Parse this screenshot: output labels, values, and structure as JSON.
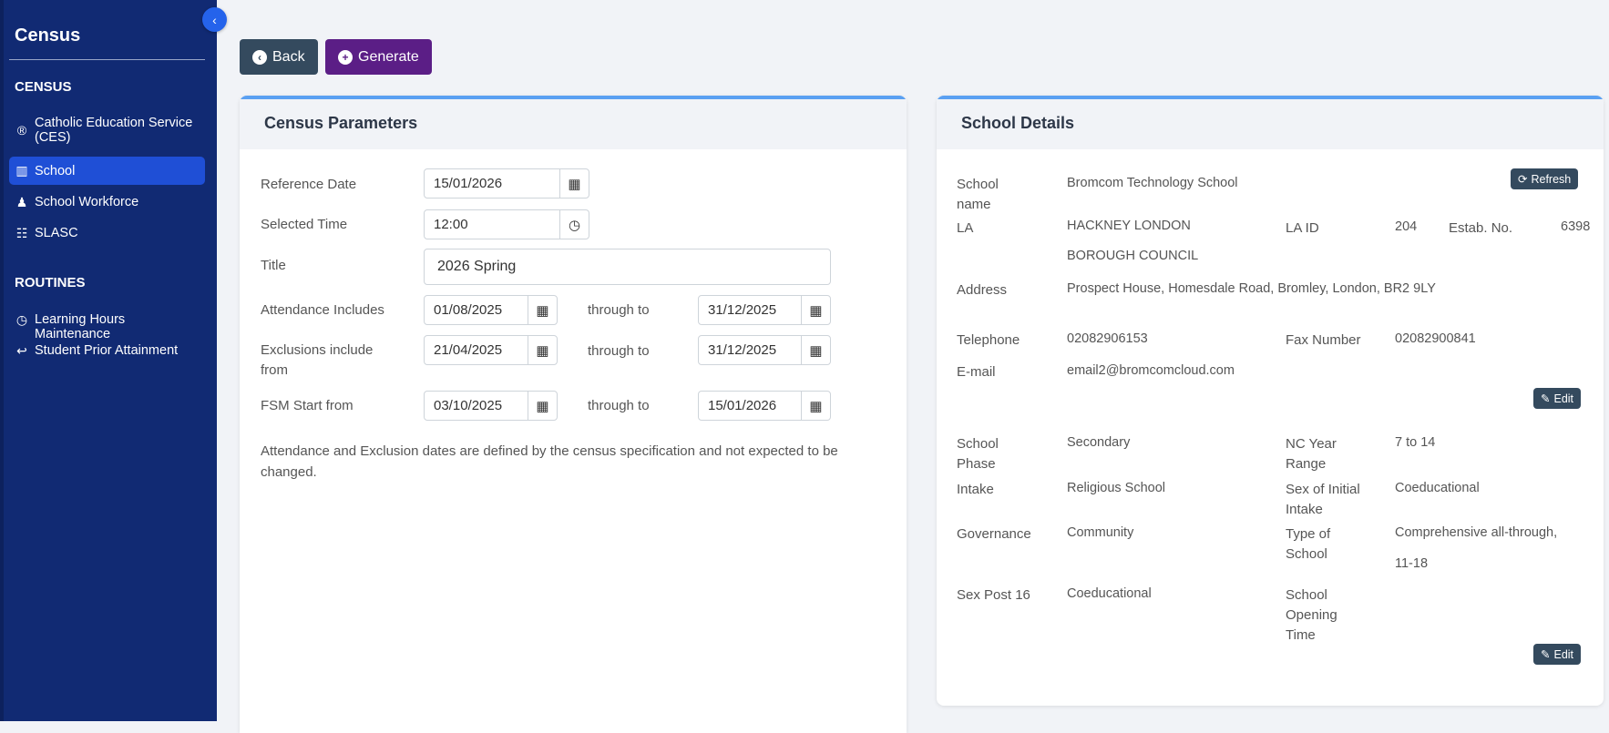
{
  "sidebar": {
    "title": "Census",
    "sections": [
      {
        "heading": "CENSUS",
        "items": [
          {
            "label": "Catholic Education Service (CES)",
            "icon": "registered-icon"
          },
          {
            "label": "School",
            "icon": "building-icon",
            "active": true
          },
          {
            "label": "School Workforce",
            "icon": "person-icon"
          },
          {
            "label": "SLASC",
            "icon": "list-icon"
          }
        ]
      },
      {
        "heading": "ROUTINES",
        "items": [
          {
            "label": "Learning Hours Maintenance",
            "icon": "clock-icon"
          },
          {
            "label": "Student Prior Attainment",
            "icon": "reply-icon"
          }
        ]
      }
    ]
  },
  "toolbar": {
    "back": "Back",
    "generate": "Generate"
  },
  "params": {
    "title": "Census Parameters",
    "reference_date_label": "Reference Date",
    "reference_date": "15/01/2026",
    "selected_time_label": "Selected Time",
    "selected_time": "12:00",
    "title_label": "Title",
    "title_value": "2026 Spring",
    "attendance_label": "Attendance Includes",
    "attendance_from": "01/08/2025",
    "attendance_to": "31/12/2025",
    "exclusions_label": "Exclusions include from",
    "exclusions_from": "21/04/2025",
    "exclusions_to": "31/12/2025",
    "fsm_label": "FSM Start from",
    "fsm_from": "03/10/2025",
    "fsm_to": "15/01/2026",
    "through_to": "through to",
    "note": "Attendance and Exclusion dates are defined by the census specification and not expected to be changed."
  },
  "school": {
    "title": "School Details",
    "refresh": "Refresh",
    "edit": "Edit",
    "name_label": "School name",
    "name": "Bromcom Technology School",
    "la_label": "LA",
    "la": "HACKNEY LONDON BOROUGH COUNCIL",
    "la_id_label": "LA ID",
    "la_id": "204",
    "estab_label": "Estab. No.",
    "estab": "6398",
    "address_label": "Address",
    "address": "Prospect House, Homesdale Road, Bromley, London, BR2 9LY",
    "telephone_label": "Telephone",
    "telephone": "02082906153",
    "fax_label": "Fax Number",
    "fax": "02082900841",
    "email_label": "E-mail",
    "email": "email2@bromcomcloud.com",
    "phase_label": "School Phase",
    "phase": "Secondary",
    "nc_label": "NC Year Range",
    "nc": "7 to 14",
    "intake_label": "Intake",
    "intake": "Religious School",
    "sex_intake_label": "Sex of Initial Intake",
    "sex_intake": "Coeducational",
    "governance_label": "Governance",
    "governance": "Community",
    "type_label": "Type of School",
    "type": "Comprehensive all-through, 11-18",
    "sex16_label": "Sex Post 16",
    "sex16": "Coeducational",
    "opening_label": "School Opening Time"
  },
  "colors": {
    "sidebar": "#112a73",
    "active": "#1f4fd6",
    "back": "#344a5e",
    "generate": "#5b1e86",
    "accent": "#5aa0f2"
  }
}
